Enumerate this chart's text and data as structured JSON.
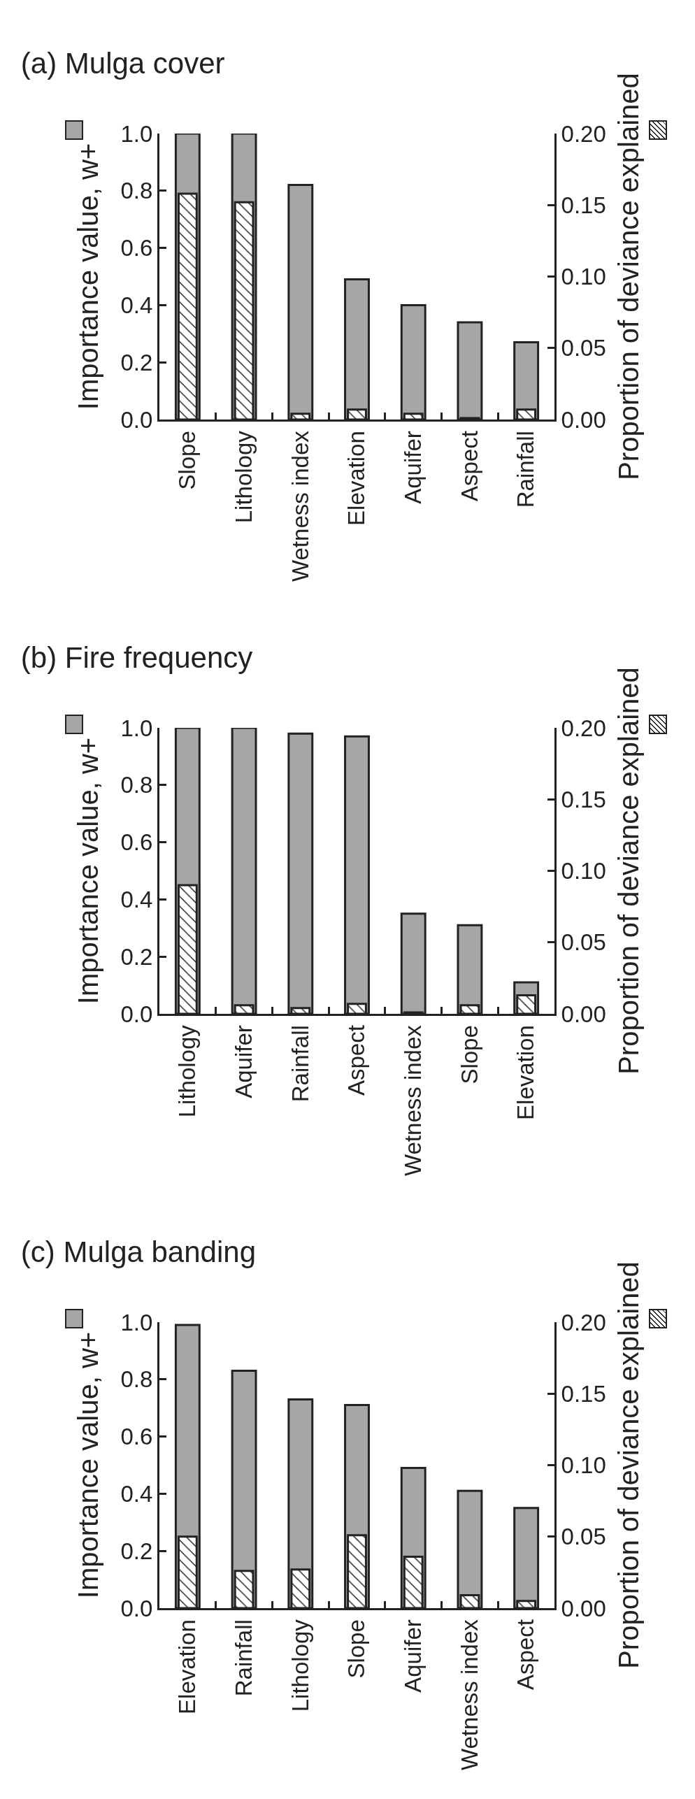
{
  "chart_data": [
    {
      "type": "bar",
      "title": "(a) Mulga cover",
      "categories": [
        "Slope",
        "Lithology",
        "Wetness index",
        "Elevation",
        "Aquifer",
        "Aspect",
        "Rainfall"
      ],
      "ylabel": "Importance value, w+",
      "y2label": "Proportion of deviance explained",
      "ylim": [
        0,
        1
      ],
      "yticks": [
        {
          "value": 0,
          "label": "0.0"
        },
        {
          "value": 0.2,
          "label": "0.2"
        },
        {
          "value": 0.4,
          "label": "0.4"
        },
        {
          "value": 0.6,
          "label": "0.6"
        },
        {
          "value": 0.8,
          "label": "0.8"
        },
        {
          "value": 1,
          "label": "1.0"
        }
      ],
      "y2lim": [
        0,
        0.2
      ],
      "y2ticks": [
        {
          "value": 0,
          "label": "0.00"
        },
        {
          "value": 0.05,
          "label": "0.05"
        },
        {
          "value": 0.1,
          "label": "0.10"
        },
        {
          "value": 0.15,
          "label": "0.15"
        },
        {
          "value": 0.2,
          "label": "0.20"
        }
      ],
      "grid": false,
      "series": [
        {
          "color": "#a6a6a6",
          "values": [
            1.0,
            1.0,
            0.82,
            0.49,
            0.4,
            0.34,
            0.27
          ]
        },
        {
          "color": "#222222",
          "axis": "y2",
          "values": [
            0.158,
            0.152,
            0.004,
            0.007,
            0.004,
            0.001,
            0.007
          ]
        }
      ]
    },
    {
      "type": "bar",
      "title": "(b) Fire frequency",
      "categories": [
        "Lithology",
        "Aquifer",
        "Rainfall",
        "Aspect",
        "Wetness index",
        "Slope",
        "Elevation"
      ],
      "ylabel": "Importance value, w+",
      "y2label": "Proportion of deviance explained",
      "ylim": [
        0,
        1
      ],
      "yticks": [
        {
          "value": 0,
          "label": "0.0"
        },
        {
          "value": 0.2,
          "label": "0.2"
        },
        {
          "value": 0.4,
          "label": "0.4"
        },
        {
          "value": 0.6,
          "label": "0.6"
        },
        {
          "value": 0.8,
          "label": "0.8"
        },
        {
          "value": 1,
          "label": "1.0"
        }
      ],
      "y2lim": [
        0,
        0.2
      ],
      "y2ticks": [
        {
          "value": 0,
          "label": "0.00"
        },
        {
          "value": 0.05,
          "label": "0.05"
        },
        {
          "value": 0.1,
          "label": "0.10"
        },
        {
          "value": 0.15,
          "label": "0.15"
        },
        {
          "value": 0.2,
          "label": "0.20"
        }
      ],
      "grid": false,
      "series": [
        {
          "color": "#a6a6a6",
          "values": [
            1.0,
            1.0,
            0.98,
            0.97,
            0.35,
            0.31,
            0.11
          ]
        },
        {
          "color": "#222222",
          "axis": "y2",
          "values": [
            0.09,
            0.006,
            0.004,
            0.007,
            0.001,
            0.006,
            0.013
          ]
        }
      ]
    },
    {
      "type": "bar",
      "title": "(c) Mulga banding",
      "categories": [
        "Elevation",
        "Rainfall",
        "Lithology",
        "Slope",
        "Aquifer",
        "Wetness index",
        "Aspect"
      ],
      "ylabel": "Importance value, w+",
      "y2label": "Proportion of deviance explained",
      "ylim": [
        0,
        1
      ],
      "yticks": [
        {
          "value": 0,
          "label": "0.0"
        },
        {
          "value": 0.2,
          "label": "0.2"
        },
        {
          "value": 0.4,
          "label": "0.4"
        },
        {
          "value": 0.6,
          "label": "0.6"
        },
        {
          "value": 0.8,
          "label": "0.8"
        },
        {
          "value": 1,
          "label": "1.0"
        }
      ],
      "y2lim": [
        0,
        0.2
      ],
      "y2ticks": [
        {
          "value": 0,
          "label": "0.00"
        },
        {
          "value": 0.05,
          "label": "0.05"
        },
        {
          "value": 0.1,
          "label": "0.10"
        },
        {
          "value": 0.15,
          "label": "0.15"
        },
        {
          "value": 0.2,
          "label": "0.20"
        }
      ],
      "grid": false,
      "series": [
        {
          "color": "#a6a6a6",
          "values": [
            0.99,
            0.83,
            0.73,
            0.71,
            0.49,
            0.41,
            0.35
          ]
        },
        {
          "color": "#222222",
          "axis": "y2",
          "values": [
            0.05,
            0.026,
            0.027,
            0.051,
            0.036,
            0.009,
            0.005
          ]
        }
      ]
    }
  ]
}
